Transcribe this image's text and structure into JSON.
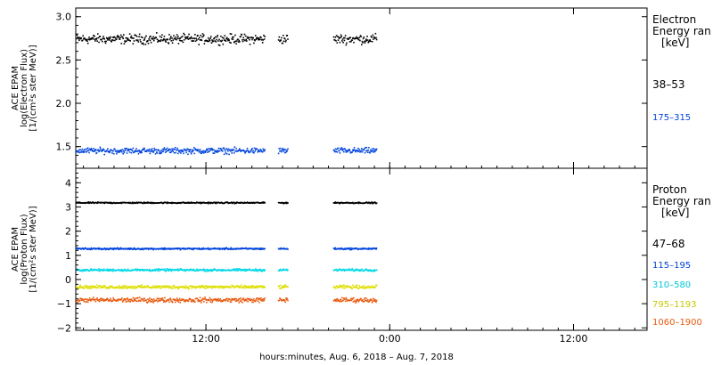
{
  "figure": {
    "xaxis_label": "hours:minutes, Aug.  6, 2018 – Aug.  7, 2018",
    "x_tick_labels": [
      "12:00",
      "0:00",
      "12:00"
    ]
  },
  "colors": {
    "black": "#000000",
    "blue": "#0044dd",
    "cyan": "#00d8e8",
    "yellow": "#dede00",
    "orange": "#e85a10"
  },
  "chart_data": [
    {
      "type": "scatter",
      "title": "",
      "ylabel_lines": [
        "ACE EPAM",
        "log(Electron Flux)",
        "[1/(cm²s ster MeV)]"
      ],
      "ylim": [
        1.25,
        3.1
      ],
      "y_ticks": [
        1.5,
        2.0,
        2.5,
        3.0
      ],
      "y_tick_labels": [
        "1.5",
        "2.0",
        "2.5",
        "3.0"
      ],
      "xlim_hours": [
        3.5,
        40.8
      ],
      "x_ticks_hours": [
        12,
        24,
        36
      ],
      "legend": {
        "title_lines": [
          "Electron",
          "Energy ran",
          "[keV]"
        ],
        "entries": [
          {
            "label": "38–53",
            "color": "black"
          },
          {
            "label": "175–315",
            "color": "blue"
          }
        ]
      },
      "data_segments_hours": [
        [
          3.5,
          15.8
        ],
        [
          16.7,
          17.3
        ],
        [
          20.3,
          23.1
        ]
      ],
      "series": [
        {
          "name": "38–53",
          "color": "black",
          "mean": 2.75,
          "spread": 0.08
        },
        {
          "name": "175–315",
          "color": "blue",
          "mean": 1.46,
          "spread": 0.05
        }
      ]
    },
    {
      "type": "scatter",
      "title": "",
      "ylabel_lines": [
        "ACE EPAM",
        "log(Proton Flux)",
        "[1/(cm²s ster MeV)]"
      ],
      "ylim": [
        -2.1,
        4.6
      ],
      "y_ticks": [
        -2,
        -1,
        0,
        1,
        2,
        3,
        4
      ],
      "y_tick_labels": [
        "−2",
        "−1",
        "0",
        "1",
        "2",
        "3",
        "4"
      ],
      "xlim_hours": [
        3.5,
        40.8
      ],
      "x_ticks_hours": [
        12,
        24,
        36
      ],
      "legend": {
        "title_lines": [
          "Proton",
          "Energy ran",
          "[keV]"
        ],
        "entries": [
          {
            "label": "47–68",
            "color": "black"
          },
          {
            "label": "115–195",
            "color": "blue"
          },
          {
            "label": "310–580",
            "color": "cyan"
          },
          {
            "label": "795–1193",
            "color": "yellow"
          },
          {
            "label": "1060–1900",
            "color": "orange"
          }
        ]
      },
      "data_segments_hours": [
        [
          3.5,
          15.8
        ],
        [
          16.7,
          17.3
        ],
        [
          20.3,
          23.1
        ]
      ],
      "series": [
        {
          "name": "47–68",
          "color": "black",
          "mean": 3.2,
          "spread": 0.04
        },
        {
          "name": "115–195",
          "color": "blue",
          "mean": 1.3,
          "spread": 0.05
        },
        {
          "name": "310–580",
          "color": "cyan",
          "mean": 0.42,
          "spread": 0.07
        },
        {
          "name": "795–1193",
          "color": "yellow",
          "mean": -0.28,
          "spread": 0.1
        },
        {
          "name": "1060–1900",
          "color": "orange",
          "mean": -0.82,
          "spread": 0.14
        }
      ]
    }
  ]
}
